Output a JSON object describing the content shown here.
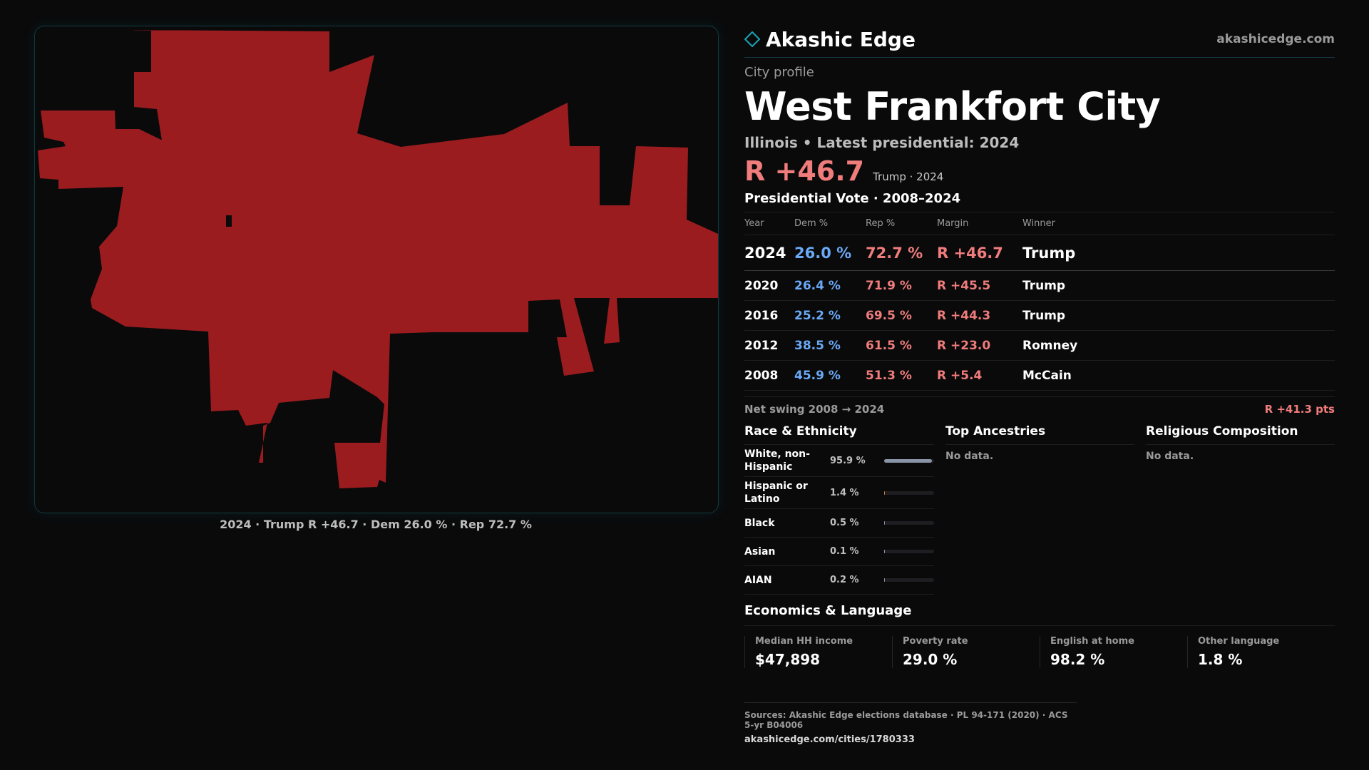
{
  "brand": {
    "name": "Akashic Edge",
    "url": "akashicedge.com",
    "logo_icon": "diamond-outline-icon",
    "accent": "#1aa6b7"
  },
  "map": {
    "caption": "2024 · Trump R +46.7 · Dem 26.0 % · Rep 72.7 %",
    "fill_color": "#9b1c1f"
  },
  "header": {
    "eyebrow": "City profile",
    "title": "West Frankfort City",
    "subline": "Illinois • Latest presidential: 2024",
    "margin": "R +46.7",
    "margin_sub": "Trump · 2024"
  },
  "votes": {
    "title": "Presidential Vote · 2008–2024",
    "columns": [
      "Year",
      "Dem %",
      "Rep %",
      "Margin",
      "Winner"
    ],
    "rows": [
      {
        "year": "2024",
        "dem": "26.0 %",
        "rep": "72.7 %",
        "margin": "R +46.7",
        "winner": "Trump"
      },
      {
        "year": "2020",
        "dem": "26.4 %",
        "rep": "71.9 %",
        "margin": "R +45.5",
        "winner": "Trump"
      },
      {
        "year": "2016",
        "dem": "25.2 %",
        "rep": "69.5 %",
        "margin": "R +44.3",
        "winner": "Trump"
      },
      {
        "year": "2012",
        "dem": "38.5 %",
        "rep": "61.5 %",
        "margin": "R +23.0",
        "winner": "Romney"
      },
      {
        "year": "2008",
        "dem": "45.9 %",
        "rep": "51.3 %",
        "margin": "R +5.4",
        "winner": "McCain"
      }
    ],
    "swing_label": "Net swing 2008 → 2024",
    "swing_value": "R +41.3 pts"
  },
  "race": {
    "title": "Race & Ethnicity",
    "rows": [
      {
        "label": "White, non-Hispanic",
        "pct": "95.9 %",
        "value": 95.9
      },
      {
        "label": "Hispanic or Latino",
        "pct": "1.4 %",
        "value": 1.4
      },
      {
        "label": "Black",
        "pct": "0.5 %",
        "value": 0.5
      },
      {
        "label": "Asian",
        "pct": "0.1 %",
        "value": 0.1
      },
      {
        "label": "AIAN",
        "pct": "0.2 %",
        "value": 0.2
      }
    ]
  },
  "ancestries": {
    "title": "Top Ancestries",
    "empty": "No data."
  },
  "religion": {
    "title": "Religious Composition",
    "empty": "No data."
  },
  "economics": {
    "title": "Economics & Language",
    "cards": [
      {
        "label": "Median HH income",
        "value": "$47,898"
      },
      {
        "label": "Poverty rate",
        "value": "29.0 %"
      },
      {
        "label": "English at home",
        "value": "98.2 %"
      },
      {
        "label": "Other language",
        "value": "1.8 %"
      }
    ]
  },
  "footer": {
    "sources": "Sources: Akashic Edge elections database · PL 94-171 (2020) · ACS 5-yr B04006",
    "url": "akashicedge.com/cities/1780333"
  }
}
